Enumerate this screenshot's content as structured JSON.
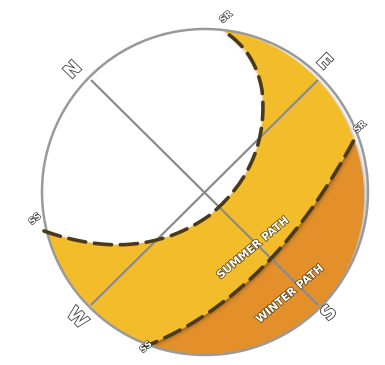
{
  "compass": {
    "north": "N",
    "east": "E",
    "south": "S",
    "west": "W"
  },
  "events": {
    "summer_sunrise": "SR",
    "winter_sunrise": "SR",
    "summer_sunset": "SS",
    "winter_sunset": "SS"
  },
  "paths": {
    "summer_label": "SUMMER PATH",
    "winter_label": "WINTER PATH"
  },
  "colors": {
    "summer_fill": "#F3BC2C",
    "winter_fill": "#E38F2A",
    "dash": "#4a3a1a",
    "outline": "#9a9a9a",
    "axis": "#8a8a8a"
  }
}
